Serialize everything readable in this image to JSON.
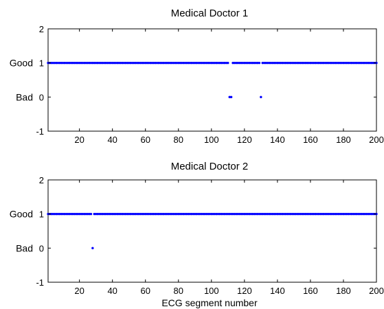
{
  "chart_data": [
    {
      "type": "scatter",
      "title": "Medical Doctor 1",
      "xlabel": "",
      "ylabel": "",
      "xlim": [
        1,
        200
      ],
      "ylim": [
        -1,
        2
      ],
      "x_ticks": [
        20,
        40,
        60,
        80,
        100,
        120,
        140,
        160,
        180,
        200
      ],
      "y_ticks": [
        -1,
        0,
        1,
        2
      ],
      "category_labels": [
        {
          "y": 1,
          "label": "Good"
        },
        {
          "y": 0,
          "label": "Bad"
        }
      ],
      "marker_color": "#0000ff",
      "grid": false,
      "series": [
        {
          "values_by_x": "1 for all x from 1 to 200 except the listed bad segments",
          "bad_segments": [
            111,
            112,
            130
          ]
        }
      ]
    },
    {
      "type": "scatter",
      "title": "Medical Doctor 2",
      "xlabel": "ECG segment number",
      "ylabel": "",
      "xlim": [
        1,
        200
      ],
      "ylim": [
        -1,
        2
      ],
      "x_ticks": [
        20,
        40,
        60,
        80,
        100,
        120,
        140,
        160,
        180,
        200
      ],
      "y_ticks": [
        -1,
        0,
        1,
        2
      ],
      "category_labels": [
        {
          "y": 1,
          "label": "Good"
        },
        {
          "y": 0,
          "label": "Bad"
        }
      ],
      "marker_color": "#0000ff",
      "grid": false,
      "series": [
        {
          "values_by_x": "1 for all x from 1 to 200 except the listed bad segments",
          "bad_segments": [
            28
          ]
        }
      ]
    }
  ]
}
